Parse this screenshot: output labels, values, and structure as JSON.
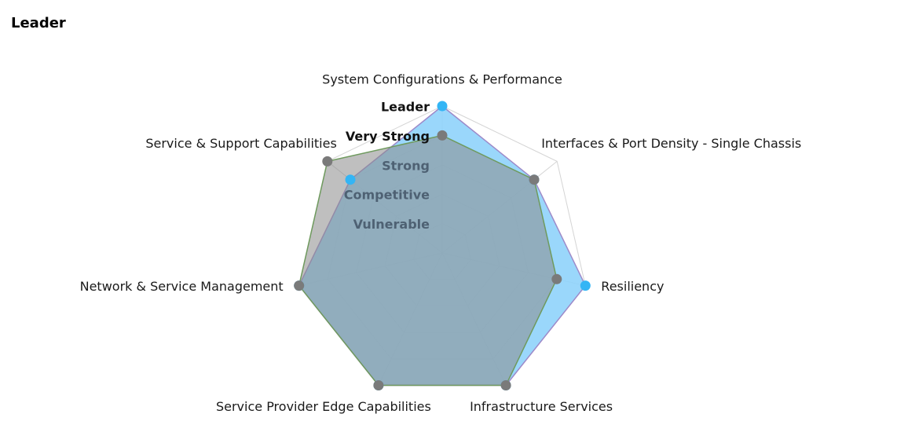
{
  "page": {
    "heading": "Leader"
  },
  "chart_data": {
    "type": "radar",
    "title": "",
    "axes": [
      "System Configurations & Performance",
      "Interfaces & Port Density - Single Chassis",
      "Resiliency",
      "Infrastructure Services",
      "Service Provider Edge Capabilities",
      "Network & Service Management",
      "Service & Support Capabilities"
    ],
    "levels": [
      "Vulnerable",
      "Competitive",
      "Strong",
      "Very Strong",
      "Leader"
    ],
    "range": [
      0,
      5
    ],
    "series": [
      {
        "values": [
          5.0,
          4.0,
          5.0,
          5.0,
          5.0,
          5.0,
          4.0
        ],
        "color": "#33b5f5",
        "fill_color": "#8fd3fb",
        "stroke_color": "#9d8ac9",
        "marker": "circle"
      },
      {
        "values": [
          4.0,
          4.0,
          4.0,
          5.0,
          5.0,
          5.0,
          5.0
        ],
        "color": "#7a7a7a",
        "fill_color": "#8a8a8a",
        "stroke_color": "#6f9a5e",
        "marker": "circle"
      }
    ],
    "legend": "none",
    "grid": true
  }
}
